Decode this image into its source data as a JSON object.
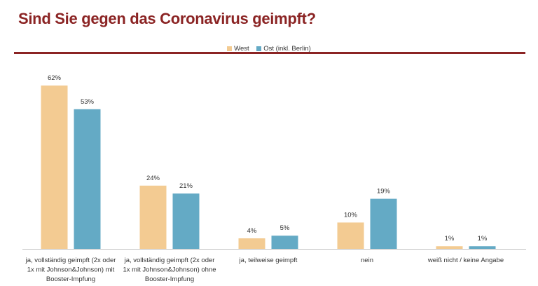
{
  "chart_data": {
    "type": "bar",
    "title": "Sind Sie gegen das Coronavirus geimpft?",
    "categories": [
      [
        "ja, vollständig geimpft (2x oder",
        "1x mit Johnson&Johnson) mit",
        "Booster-Impfung"
      ],
      [
        "ja, vollständig geimpft (2x oder",
        "1x mit Johnson&Johnson) ohne",
        "Booster-Impfung"
      ],
      [
        "ja, teilweise geimpft"
      ],
      [
        "nein"
      ],
      [
        "weiß nicht / keine Angabe"
      ]
    ],
    "series": [
      {
        "name": "West",
        "color": "#f3cb92",
        "values": [
          62,
          24,
          4,
          10,
          1
        ],
        "labels": [
          "62%",
          "24%",
          "4%",
          "10%",
          "1%"
        ]
      },
      {
        "name": "Ost (inkl. Berlin)",
        "color": "#64aac5",
        "values": [
          53,
          21,
          5,
          19,
          1
        ],
        "labels": [
          "53%",
          "21%",
          "5%",
          "19%",
          "1%"
        ]
      }
    ],
    "ylim": [
      0,
      62
    ],
    "grid": false,
    "legend": "top-center",
    "title_color": "#8b2424"
  }
}
